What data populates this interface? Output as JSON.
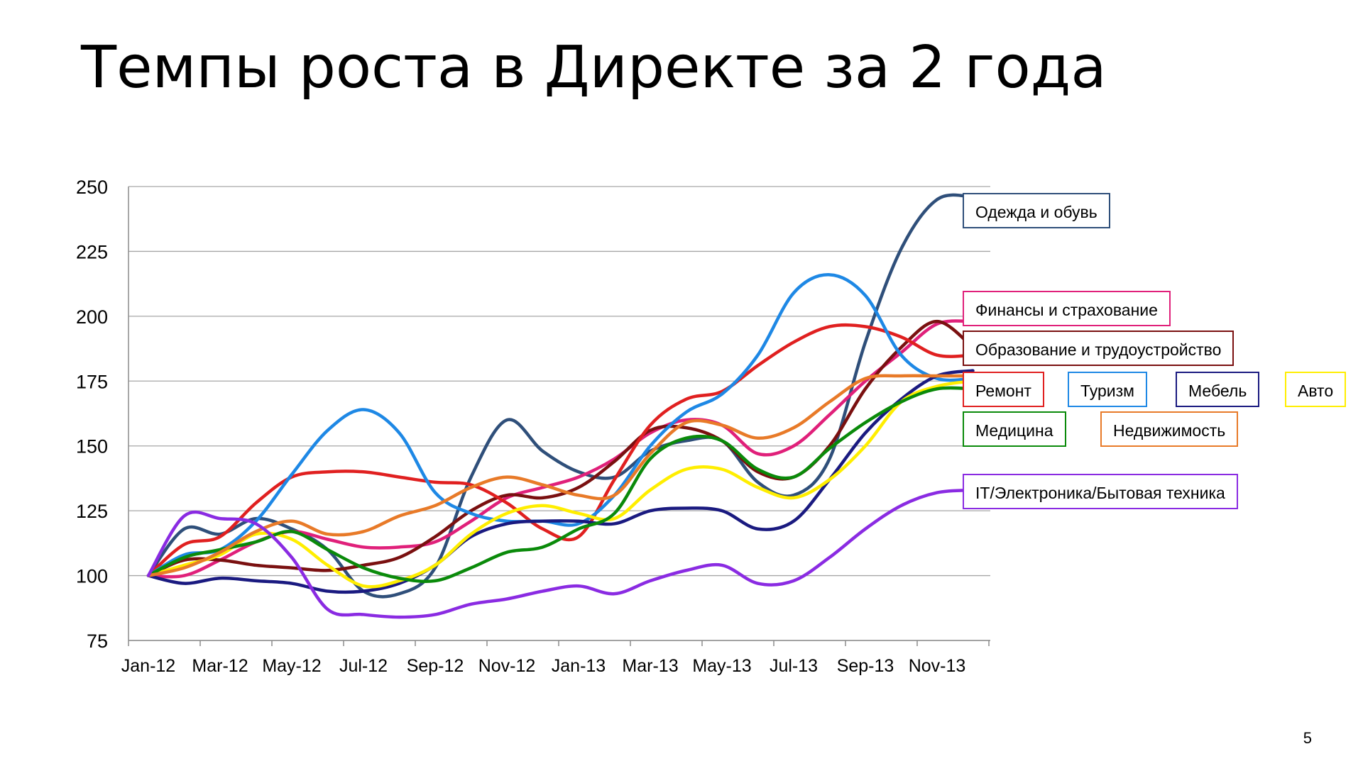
{
  "slide": {
    "title": "Темпы роста в Директе за 2 года",
    "page_number": "5"
  },
  "chart_data": {
    "type": "line",
    "title": "",
    "xlabel": "",
    "ylabel": "",
    "ylim": [
      75,
      250
    ],
    "yticks": [
      75,
      100,
      125,
      150,
      175,
      200,
      225,
      250
    ],
    "grid": true,
    "categories": [
      "Jan-12",
      "Feb-12",
      "Mar-12",
      "Apr-12",
      "May-12",
      "Jun-12",
      "Jul-12",
      "Aug-12",
      "Sep-12",
      "Oct-12",
      "Nov-12",
      "Dec-12",
      "Jan-13",
      "Feb-13",
      "Mar-13",
      "Apr-13",
      "May-13",
      "Jun-13",
      "Jul-13",
      "Aug-13",
      "Sep-13",
      "Oct-13",
      "Nov-13",
      "Dec-13"
    ],
    "tick_labels": [
      "Jan-12",
      "Mar-12",
      "May-12",
      "Jul-12",
      "Sep-12",
      "Nov-12",
      "Jan-13",
      "Mar-13",
      "May-13",
      "Jul-13",
      "Sep-13",
      "Nov-13"
    ],
    "series": [
      {
        "name": "Одежда и обувь",
        "color": "#2f4f7a",
        "values": [
          100,
          118,
          116,
          122,
          118,
          110,
          94,
          93,
          103,
          138,
          160,
          148,
          140,
          138,
          148,
          152,
          152,
          136,
          131,
          145,
          190,
          226,
          245,
          246
        ]
      },
      {
        "name": "Финансы и страхование",
        "color": "#e0207a",
        "values": [
          100,
          100,
          106,
          113,
          117,
          114,
          111,
          111,
          113,
          121,
          130,
          134,
          138,
          145,
          155,
          160,
          158,
          147,
          150,
          162,
          175,
          186,
          197,
          198
        ]
      },
      {
        "name": "Образование и трудоустройство",
        "color": "#7a1010",
        "values": [
          100,
          106,
          106,
          104,
          103,
          102,
          104,
          107,
          115,
          125,
          131,
          130,
          134,
          144,
          156,
          157,
          152,
          140,
          138,
          150,
          172,
          188,
          198,
          188
        ]
      },
      {
        "name": "Ремонт",
        "color": "#e02020",
        "values": [
          100,
          112,
          115,
          128,
          138,
          140,
          140,
          138,
          136,
          135,
          128,
          118,
          115,
          137,
          158,
          168,
          171,
          181,
          190,
          196,
          196,
          192,
          185,
          185
        ]
      },
      {
        "name": "Туризм",
        "color": "#1e88e5",
        "values": [
          100,
          108,
          110,
          121,
          139,
          156,
          164,
          155,
          132,
          124,
          121,
          121,
          120,
          131,
          150,
          163,
          170,
          185,
          209,
          216,
          208,
          185,
          176,
          176
        ]
      },
      {
        "name": "Мебель",
        "color": "#1a1a80",
        "values": [
          100,
          97,
          99,
          98,
          97,
          94,
          94,
          97,
          104,
          115,
          120,
          121,
          121,
          120,
          125,
          126,
          125,
          118,
          121,
          137,
          155,
          168,
          177,
          179
        ]
      },
      {
        "name": "Авто",
        "color": "#ffee00",
        "values": [
          100,
          104,
          108,
          116,
          114,
          104,
          96,
          98,
          104,
          116,
          124,
          127,
          124,
          122,
          133,
          141,
          141,
          134,
          130,
          137,
          150,
          167,
          173,
          175
        ]
      },
      {
        "name": "Медицина",
        "color": "#0a8a0a",
        "values": [
          100,
          107,
          110,
          113,
          117,
          110,
          103,
          99,
          98,
          103,
          109,
          111,
          118,
          124,
          145,
          153,
          152,
          141,
          138,
          149,
          159,
          167,
          172,
          172
        ]
      },
      {
        "name": "Недвижимость",
        "color": "#e87a28",
        "values": [
          100,
          103,
          109,
          117,
          121,
          116,
          117,
          123,
          127,
          134,
          138,
          135,
          131,
          131,
          147,
          159,
          158,
          153,
          157,
          167,
          176,
          177,
          177,
          177
        ]
      },
      {
        "name": "IT/Электроника/Бытовая техника",
        "color": "#8a2be2",
        "values": [
          100,
          123,
          122,
          120,
          107,
          87,
          85,
          84,
          85,
          89,
          91,
          94,
          96,
          93,
          98,
          102,
          104,
          97,
          98,
          107,
          118,
          127,
          132,
          133
        ]
      }
    ],
    "legend": [
      {
        "label": "Одежда и обувь",
        "color": "#2f4f7a"
      },
      {
        "label": "Финансы и страхование",
        "color": "#e0207a"
      },
      {
        "label": "Образование и трудоустройство",
        "color": "#7a1010"
      },
      {
        "label": "Ремонт",
        "color": "#e02020"
      },
      {
        "label": "Туризм",
        "color": "#1e88e5"
      },
      {
        "label": "Мебель",
        "color": "#1a1a80"
      },
      {
        "label": "Авто",
        "color": "#ffee00"
      },
      {
        "label": "Медицина",
        "color": "#0a8a0a"
      },
      {
        "label": "Недвижимость",
        "color": "#e87a28"
      },
      {
        "label": "IT/Электроника/Бытовая техника",
        "color": "#8a2be2"
      }
    ]
  }
}
